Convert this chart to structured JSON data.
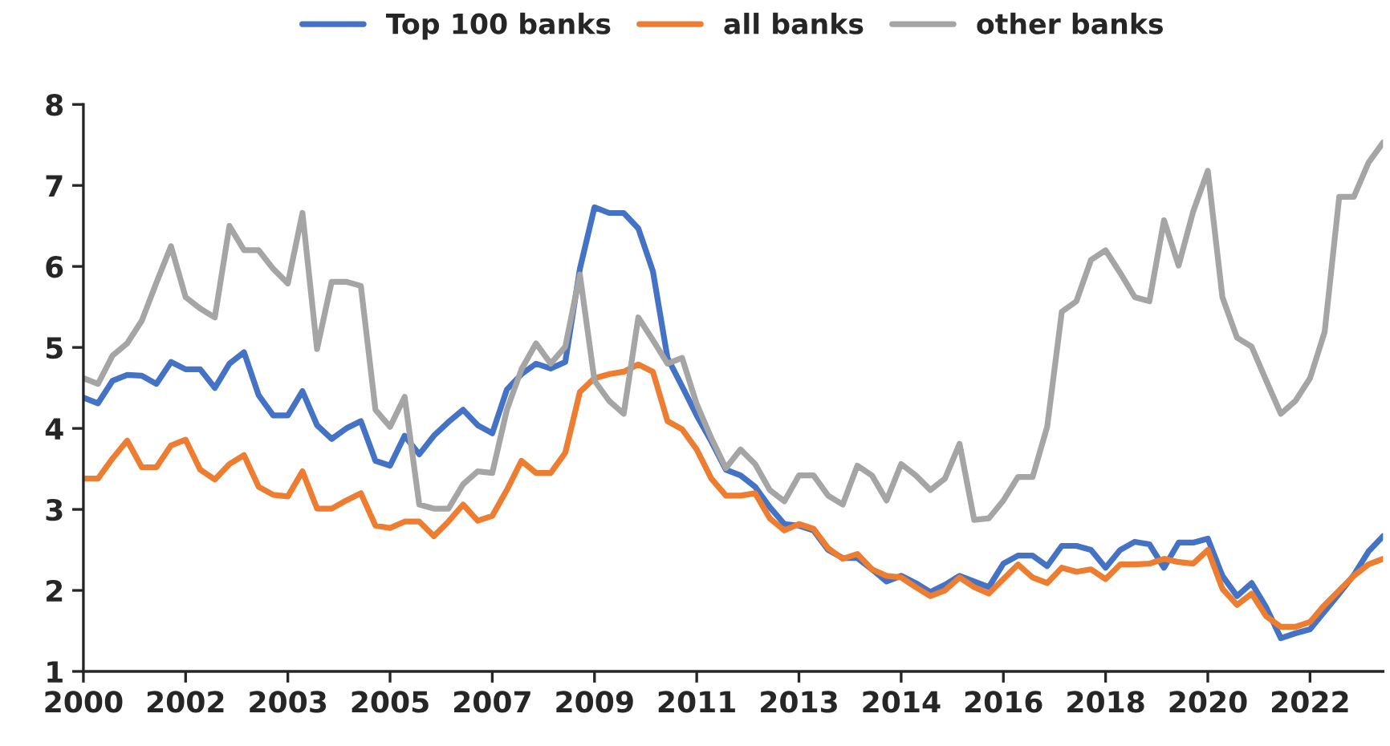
{
  "chart_data": {
    "type": "line",
    "categories": [
      "2000",
      null,
      null,
      null,
      null,
      null,
      null,
      "2002",
      null,
      null,
      null,
      null,
      null,
      null,
      "2003",
      null,
      null,
      null,
      null,
      null,
      null,
      "2005",
      null,
      null,
      null,
      null,
      null,
      null,
      "2007",
      null,
      null,
      null,
      null,
      null,
      null,
      "2009",
      null,
      null,
      null,
      null,
      null,
      null,
      "2011",
      null,
      null,
      null,
      null,
      null,
      null,
      "2013",
      null,
      null,
      null,
      null,
      null,
      null,
      "2014",
      null,
      null,
      null,
      null,
      null,
      null,
      "2016",
      null,
      null,
      null,
      null,
      null,
      null,
      "2018",
      null,
      null,
      null,
      null,
      null,
      null,
      "2020",
      null,
      null,
      null,
      null,
      null,
      null,
      "2022",
      null,
      null,
      null,
      null,
      null
    ],
    "series": [
      {
        "name": "Top 100 banks",
        "color": "#4472c4",
        "values": [
          4.38,
          4.31,
          4.59,
          4.66,
          4.65,
          4.55,
          4.82,
          4.73,
          4.73,
          4.5,
          4.8,
          4.94,
          4.41,
          4.16,
          4.16,
          4.46,
          4.04,
          3.87,
          4.0,
          4.09,
          3.6,
          3.54,
          3.91,
          3.68,
          3.91,
          4.08,
          4.23,
          4.04,
          3.94,
          4.48,
          4.67,
          4.8,
          4.74,
          4.82,
          5.97,
          6.73,
          6.66,
          6.66,
          6.47,
          5.94,
          4.87,
          4.52,
          4.16,
          3.84,
          3.49,
          3.42,
          3.28,
          3.03,
          2.82,
          2.8,
          2.74,
          2.5,
          2.4,
          2.4,
          2.26,
          2.11,
          2.18,
          2.09,
          1.98,
          2.07,
          2.18,
          2.11,
          2.04,
          2.33,
          2.43,
          2.43,
          2.3,
          2.55,
          2.55,
          2.5,
          2.28,
          2.5,
          2.6,
          2.57,
          2.28,
          2.59,
          2.59,
          2.64,
          2.18,
          1.93,
          2.09,
          1.79,
          1.41,
          1.47,
          1.52,
          1.74,
          1.96,
          2.19,
          2.48,
          2.67
        ]
      },
      {
        "name": "all banks",
        "color": "#ed7d31",
        "values": [
          3.38,
          3.38,
          3.63,
          3.85,
          3.52,
          3.52,
          3.79,
          3.86,
          3.49,
          3.37,
          3.56,
          3.67,
          3.28,
          3.18,
          3.16,
          3.47,
          3.01,
          3.01,
          3.11,
          3.2,
          2.8,
          2.77,
          2.85,
          2.85,
          2.67,
          2.85,
          3.06,
          2.86,
          2.92,
          3.24,
          3.6,
          3.45,
          3.45,
          3.7,
          4.45,
          4.62,
          4.67,
          4.7,
          4.79,
          4.7,
          4.09,
          3.99,
          3.74,
          3.38,
          3.17,
          3.17,
          3.2,
          2.89,
          2.74,
          2.82,
          2.76,
          2.52,
          2.39,
          2.45,
          2.26,
          2.18,
          2.16,
          2.04,
          1.93,
          2.0,
          2.16,
          2.04,
          1.96,
          2.14,
          2.32,
          2.16,
          2.09,
          2.28,
          2.23,
          2.26,
          2.14,
          2.32,
          2.32,
          2.33,
          2.39,
          2.35,
          2.33,
          2.5,
          2.02,
          1.82,
          1.96,
          1.68,
          1.55,
          1.55,
          1.61,
          1.82,
          2.0,
          2.18,
          2.32,
          2.39
        ]
      },
      {
        "name": "other banks",
        "color": "#a5a5a5",
        "values": [
          4.62,
          4.55,
          4.9,
          5.05,
          5.33,
          5.8,
          6.25,
          5.62,
          5.48,
          5.37,
          6.5,
          6.2,
          6.2,
          5.97,
          5.79,
          6.66,
          4.98,
          5.81,
          5.81,
          5.76,
          4.23,
          4.02,
          4.39,
          3.06,
          3.01,
          3.01,
          3.31,
          3.47,
          3.45,
          4.23,
          4.73,
          5.05,
          4.8,
          5.01,
          5.9,
          4.59,
          4.34,
          4.18,
          5.37,
          5.09,
          4.8,
          4.87,
          4.3,
          3.88,
          3.51,
          3.74,
          3.56,
          3.24,
          3.1,
          3.42,
          3.42,
          3.17,
          3.06,
          3.54,
          3.42,
          3.11,
          3.56,
          3.42,
          3.24,
          3.38,
          3.81,
          2.87,
          2.89,
          3.11,
          3.4,
          3.4,
          4.02,
          5.44,
          5.57,
          6.08,
          6.2,
          5.92,
          5.62,
          5.57,
          6.57,
          6.01,
          6.68,
          7.18,
          5.62,
          5.12,
          5.01,
          4.59,
          4.18,
          4.34,
          4.62,
          5.19,
          6.86,
          6.86,
          7.28,
          7.53
        ]
      }
    ],
    "ylim": [
      1,
      8
    ],
    "yticks": [
      1,
      2,
      3,
      4,
      5,
      6,
      7,
      8
    ],
    "legend": "top",
    "grid": false,
    "line_style": "solid",
    "marker": "none"
  }
}
